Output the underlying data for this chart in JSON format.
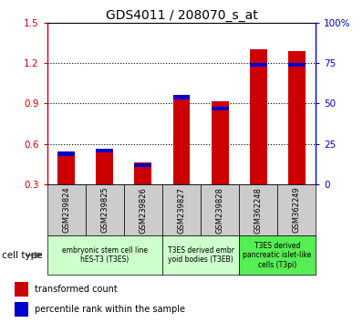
{
  "title": "GDS4011 / 208070_s_at",
  "samples": [
    "GSM239824",
    "GSM239825",
    "GSM239826",
    "GSM239827",
    "GSM239828",
    "GSM362248",
    "GSM362249"
  ],
  "transformed_count": [
    0.52,
    0.555,
    0.46,
    0.955,
    0.915,
    1.3,
    1.285
  ],
  "percentile_rank": [
    20,
    22,
    13,
    55,
    48,
    75,
    75
  ],
  "ylim_left": [
    0.3,
    1.5
  ],
  "ylim_right": [
    0,
    100
  ],
  "yticks_left": [
    0.3,
    0.6,
    0.9,
    1.2,
    1.5
  ],
  "yticks_right": [
    0,
    25,
    50,
    75,
    100
  ],
  "ytick_labels_right": [
    "0",
    "25",
    "50",
    "75",
    "100%"
  ],
  "red_color": "#cc0000",
  "blue_color": "#0000cc",
  "bar_width": 0.45,
  "groups": [
    {
      "start": 0,
      "end": 2,
      "label": "embryonic stem cell line\nhES-T3 (T3ES)",
      "color": "#ccffcc"
    },
    {
      "start": 3,
      "end": 4,
      "label": "T3ES derived embr\nyoid bodies (T3EB)",
      "color": "#ccffcc"
    },
    {
      "start": 5,
      "end": 6,
      "label": "T3ES derived\npancreatic islet-like\ncells (T3pi)",
      "color": "#55ee55"
    }
  ],
  "legend_red": "transformed count",
  "legend_blue": "percentile rank within the sample",
  "cell_type_label": "cell type",
  "title_fontsize": 10
}
